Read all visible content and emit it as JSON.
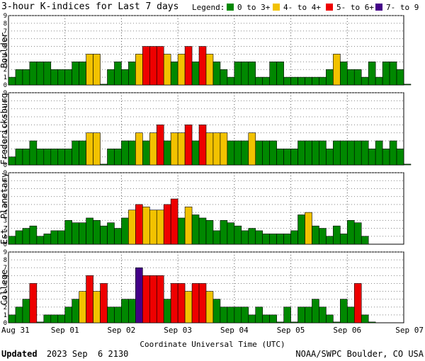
{
  "header": {
    "title": "3-hour K-indices for Last 7 days",
    "legend_label": "Legend:",
    "legend": [
      {
        "label": "0 to 3+",
        "color": "#008800"
      },
      {
        "label": "4- to 4+",
        "color": "#f2c200"
      },
      {
        "label": "5- to 6+",
        "color": "#ee0000"
      },
      {
        "label": "7- to 9",
        "color": "#440088"
      }
    ]
  },
  "chart_data": {
    "type": "bar",
    "x_ticks": [
      "Aug 31",
      "Sep 01",
      "Sep 02",
      "Sep 03",
      "Sep 04",
      "Sep 05",
      "Sep 06",
      "Sep 07"
    ],
    "xlabel": "Coordinate Universal Time (UTC)",
    "ylim": [
      0,
      9
    ],
    "y_ticks": [
      "0",
      "1",
      "2",
      "3",
      "4",
      "5",
      "6",
      "7",
      "8",
      "9"
    ],
    "grid": "dotted",
    "series": [
      {
        "name": "Boulder",
        "values": [
          1,
          2,
          2,
          3,
          3,
          3,
          2,
          2,
          2,
          3,
          3,
          4,
          4,
          0,
          2,
          3,
          2,
          3,
          4,
          5,
          5,
          5,
          4,
          3,
          4,
          5,
          3,
          5,
          4,
          3,
          2,
          1,
          3,
          3,
          3,
          1,
          1,
          3,
          3,
          1,
          1,
          1,
          1,
          1,
          1,
          2,
          4,
          3,
          2,
          2,
          1,
          3,
          1,
          3,
          3,
          2,
          0
        ]
      },
      {
        "name": "Fredericksburg",
        "values": [
          1,
          2,
          2,
          3,
          2,
          2,
          2,
          2,
          2,
          3,
          3,
          4,
          4,
          0,
          2,
          2,
          3,
          3,
          4,
          3,
          4,
          5,
          3,
          4,
          4,
          5,
          3,
          5,
          4,
          4,
          4,
          3,
          3,
          3,
          4,
          3,
          3,
          3,
          2,
          2,
          2,
          3,
          3,
          3,
          3,
          2,
          3,
          3,
          3,
          3,
          3,
          2,
          3,
          2,
          3,
          2,
          0
        ]
      },
      {
        "name": "Est. Planetary",
        "values": [
          1,
          1.7,
          2,
          2.3,
          1,
          1.3,
          1.7,
          1.7,
          3,
          2.7,
          2.7,
          3.3,
          3,
          2.3,
          2.7,
          2,
          3.3,
          4.3,
          5,
          4.7,
          4.3,
          4.3,
          5,
          5.7,
          3.3,
          4.7,
          3.7,
          3.3,
          3,
          1.7,
          3,
          2.7,
          2.3,
          1.7,
          2,
          1.7,
          1.3,
          1.3,
          1.3,
          1.3,
          1.7,
          3.7,
          4,
          2.3,
          2,
          1,
          2.3,
          1.3,
          3,
          2.7,
          1
        ]
      },
      {
        "name": "College",
        "values": [
          1,
          2,
          3,
          5,
          0,
          1,
          1,
          1,
          2,
          3,
          4,
          6,
          4,
          5,
          2,
          2,
          3,
          3,
          7,
          6,
          6,
          6,
          3,
          5,
          5,
          4,
          5,
          5,
          4,
          3,
          2,
          2,
          2,
          2,
          1,
          2,
          1,
          1,
          0,
          2,
          0,
          2,
          2,
          3,
          2,
          1,
          0,
          3,
          2,
          5,
          1,
          0
        ]
      }
    ]
  },
  "footer": {
    "updated_label": "Updated",
    "updated_value": "2023 Sep  6 2130",
    "credit": "NOAA/SWPC Boulder, CO USA"
  }
}
